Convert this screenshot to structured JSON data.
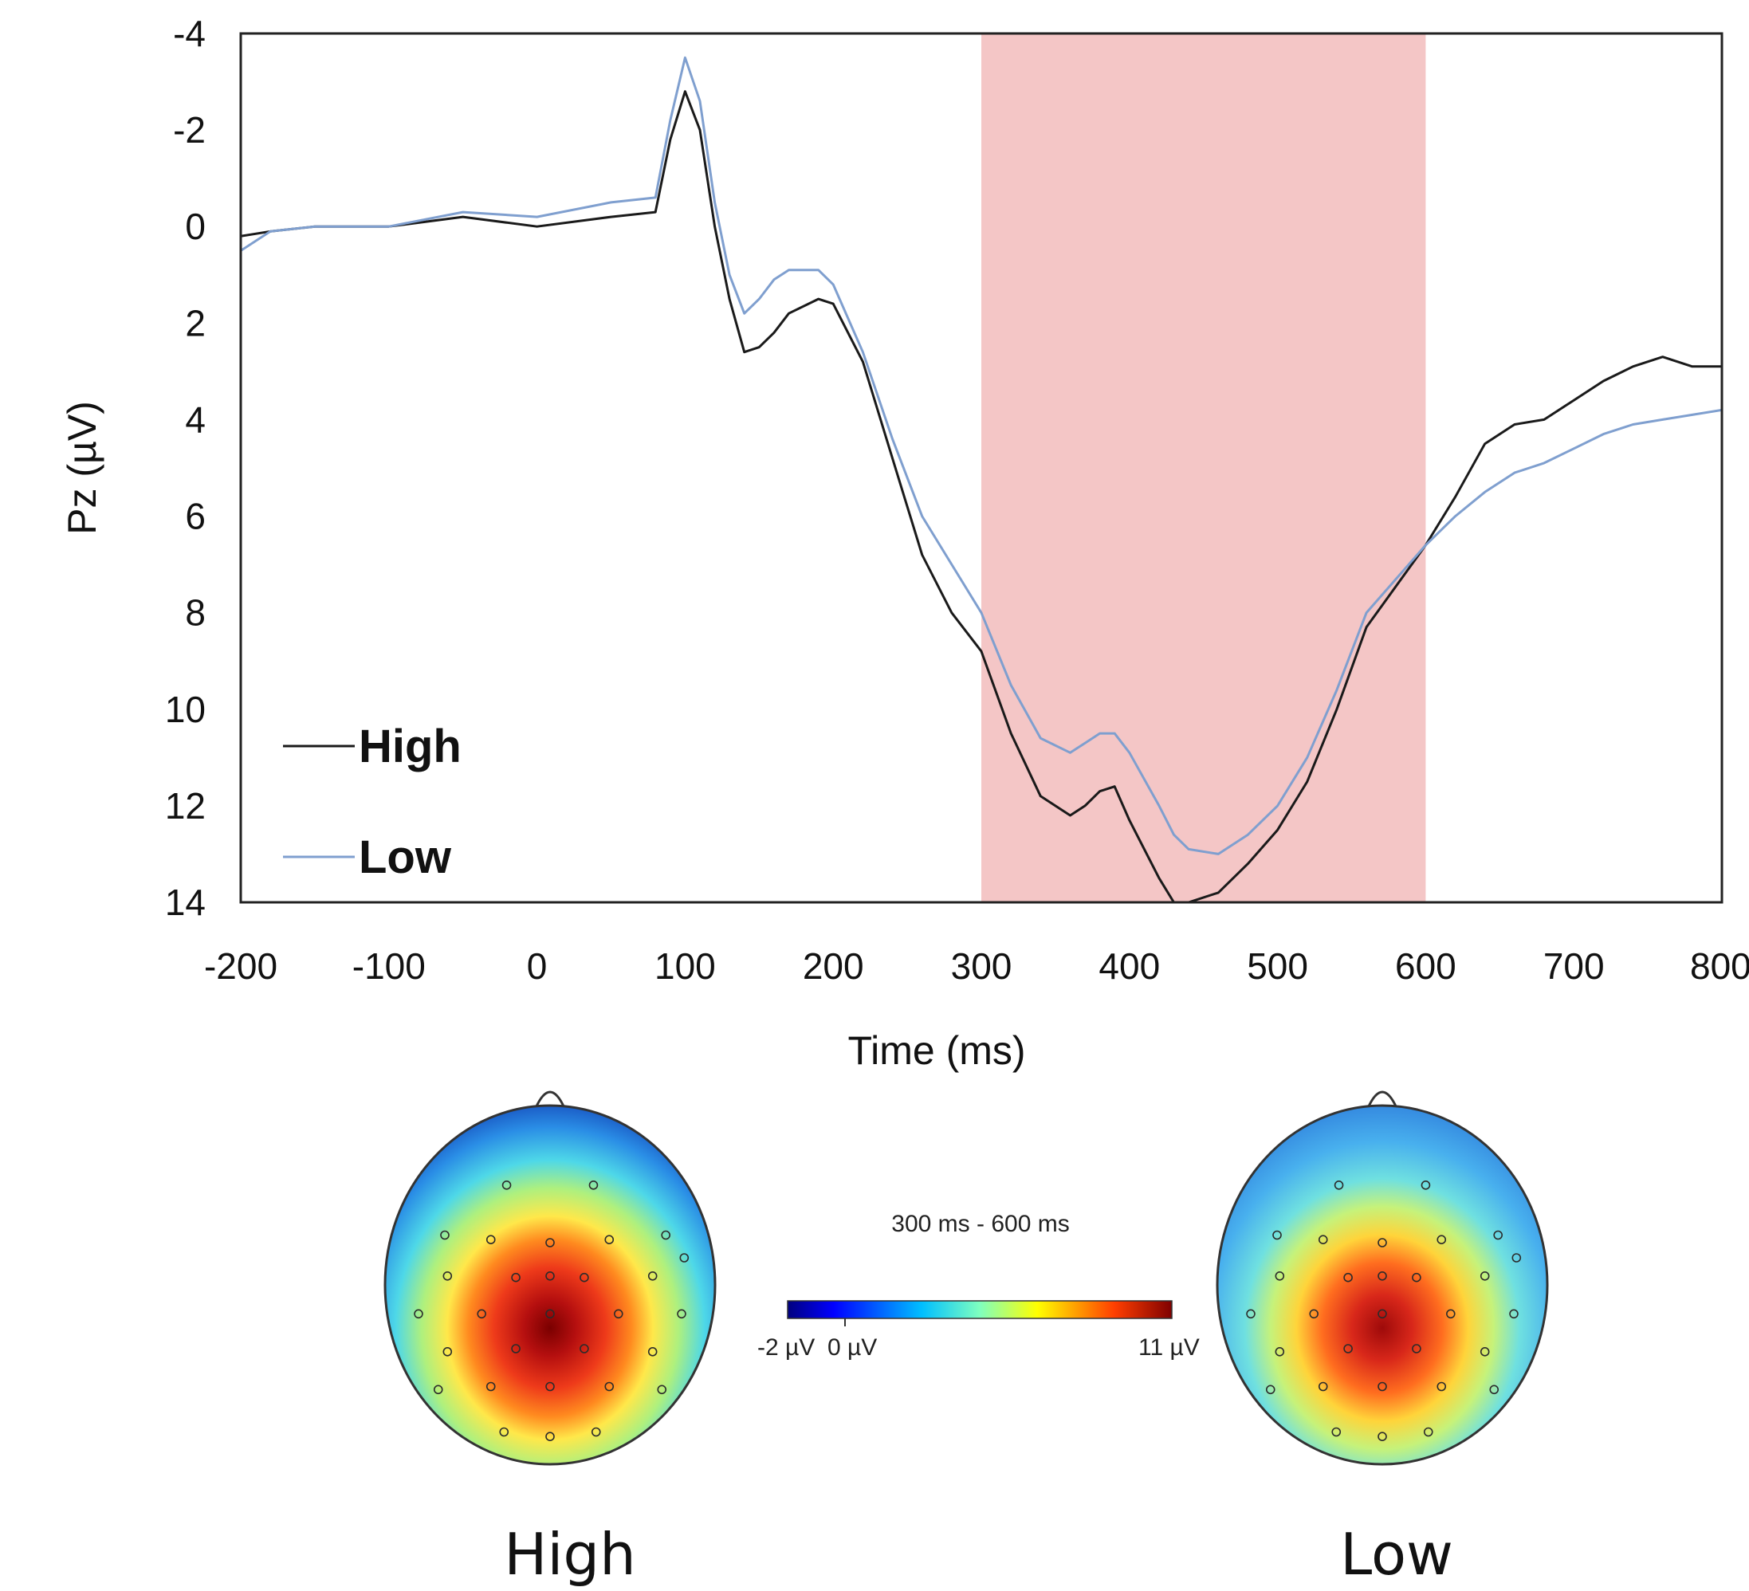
{
  "colors": {
    "high_line": "#1a1a1a",
    "low_line": "#7f9fcf",
    "window_fill": "#f4c6c6"
  },
  "chart_data": [
    {
      "type": "line",
      "title": "",
      "xlabel": "Time (ms)",
      "ylabel": "Pz (µV)",
      "xlim": [
        -200,
        800
      ],
      "ylim": [
        -4,
        14
      ],
      "y_inverted": true,
      "grid": false,
      "legend_placement": "bottom-left",
      "x_ticks": [
        "-200",
        "-100",
        "0",
        "100",
        "200",
        "300",
        "400",
        "500",
        "600",
        "700",
        "800"
      ],
      "y_ticks": [
        "-4",
        "-2",
        "0",
        "2",
        "4",
        "6",
        "8",
        "10",
        "12",
        "14"
      ],
      "highlight_window": [
        300,
        600
      ],
      "series": [
        {
          "name": "High",
          "x": [
            -200,
            -180,
            -150,
            -100,
            -50,
            0,
            50,
            80,
            90,
            100,
            110,
            120,
            130,
            140,
            150,
            160,
            170,
            190,
            200,
            220,
            240,
            260,
            280,
            300,
            320,
            340,
            360,
            370,
            380,
            390,
            400,
            420,
            430,
            440,
            460,
            480,
            500,
            520,
            540,
            560,
            600,
            620,
            640,
            660,
            680,
            700,
            720,
            740,
            760,
            780,
            800
          ],
          "y": [
            0.2,
            0.1,
            0.0,
            0.0,
            -0.2,
            0.0,
            -0.2,
            -0.3,
            -1.8,
            -2.8,
            -2.0,
            0.0,
            1.5,
            2.6,
            2.5,
            2.2,
            1.8,
            1.5,
            1.6,
            2.8,
            4.8,
            6.8,
            8.0,
            8.8,
            10.5,
            11.8,
            12.2,
            12.0,
            11.7,
            11.6,
            12.3,
            13.5,
            14.0,
            14.0,
            13.8,
            13.2,
            12.5,
            11.5,
            10.0,
            8.3,
            6.6,
            5.6,
            4.5,
            4.1,
            4.0,
            3.6,
            3.2,
            2.9,
            2.7,
            2.9,
            2.9
          ]
        },
        {
          "name": "Low",
          "x": [
            -200,
            -180,
            -150,
            -100,
            -50,
            0,
            50,
            80,
            90,
            100,
            110,
            120,
            130,
            140,
            150,
            160,
            170,
            190,
            200,
            220,
            240,
            260,
            280,
            300,
            320,
            340,
            360,
            370,
            380,
            390,
            400,
            420,
            430,
            440,
            460,
            480,
            500,
            520,
            540,
            560,
            600,
            620,
            640,
            660,
            680,
            700,
            720,
            740,
            760,
            780,
            800
          ],
          "y": [
            0.5,
            0.1,
            0.0,
            0.0,
            -0.3,
            -0.2,
            -0.5,
            -0.6,
            -2.2,
            -3.5,
            -2.6,
            -0.5,
            1.0,
            1.8,
            1.5,
            1.1,
            0.9,
            0.9,
            1.2,
            2.6,
            4.4,
            6.0,
            7.0,
            8.0,
            9.5,
            10.6,
            10.9,
            10.7,
            10.5,
            10.5,
            10.9,
            12.0,
            12.6,
            12.9,
            13.0,
            12.6,
            12.0,
            11.0,
            9.6,
            8.0,
            6.6,
            6.0,
            5.5,
            5.1,
            4.9,
            4.6,
            4.3,
            4.1,
            4.0,
            3.9,
            3.8
          ]
        }
      ]
    },
    {
      "type": "heatmap",
      "title": "300 ms - 600 ms",
      "colorbar": {
        "min_label": "-2 µV",
        "zero_label": "0 µV",
        "max_label": "11 µV",
        "range": [
          -2,
          11
        ]
      },
      "maps": [
        {
          "name": "High"
        },
        {
          "name": "Low"
        }
      ]
    }
  ]
}
